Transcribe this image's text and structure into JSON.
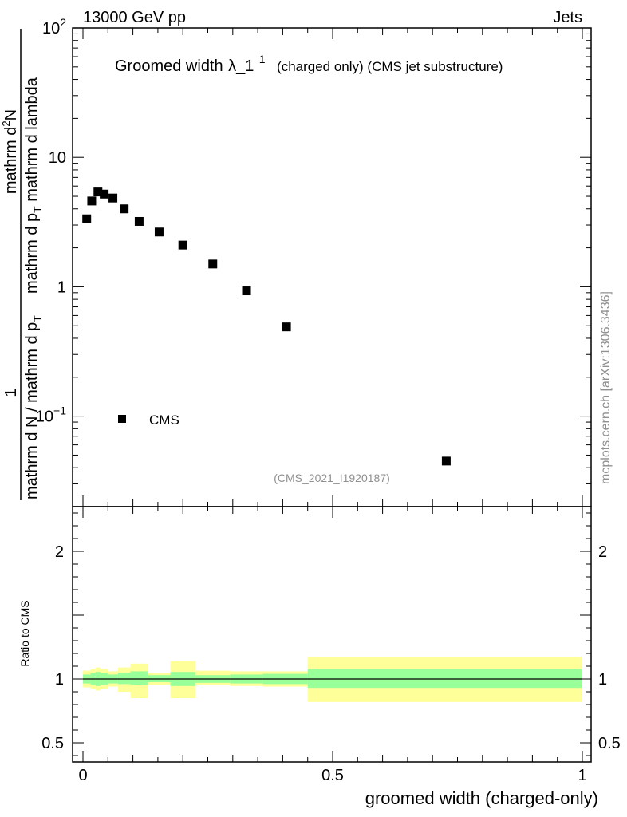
{
  "header": {
    "left": "13000 GeV pp",
    "right": "Jets"
  },
  "main_plot": {
    "title_main": "Groomed width",
    "title_symbol": "λ_1",
    "title_sup": "1",
    "title_note": "(charged only) (CMS jet substructure)",
    "ylabel_numerator_sym": "mathrm d",
    "ylabel_numerator_sup": "2",
    "ylabel_numerator_var": "N",
    "ylabel_denominator": "mathrm d p",
    "ylabel_denominator_sub": "T",
    "ylabel_denominator_tail": " mathrm d lambda",
    "ylabel_prefix_num": "1",
    "ylabel_prefix_den": "mathrm d N / mathrm d p",
    "ylabel_prefix_den_sub": "T",
    "legend_label": "CMS",
    "analysis_id": "(CMS_2021_I1920187)",
    "side_text": "mcplots.cern.ch [arXiv:1306.3436]"
  },
  "ratio_plot": {
    "ylabel": "Ratio to CMS"
  },
  "chart_data": {
    "type": "scatter",
    "title": "Groomed width λ_1^1 (charged only) (CMS jet substructure)",
    "xlabel": "groomed width (charged-only)",
    "xlim": [
      0,
      1
    ],
    "ylim": [
      0.02,
      100
    ],
    "yscale": "log",
    "x_ticks": [
      "0",
      "0.5",
      "1"
    ],
    "y_ticks": [
      "10^-1",
      "1",
      "10",
      "10^2"
    ],
    "series": [
      {
        "name": "CMS",
        "x": [
          0.0075,
          0.0175,
          0.03,
          0.0425,
          0.06,
          0.0825,
          0.1125,
          0.1525,
          0.2,
          0.26,
          0.3275,
          0.4075,
          0.7275
        ],
        "y": [
          3.35,
          4.6,
          5.4,
          5.2,
          4.85,
          4.0,
          3.2,
          2.65,
          2.1,
          1.5,
          0.93,
          0.49,
          0.045
        ]
      }
    ],
    "ratio": {
      "ylabel": "Ratio to CMS",
      "ylim": [
        0.35,
        2.35
      ],
      "y_ticks": [
        "0.5",
        "1",
        "2"
      ],
      "bins": [
        {
          "x0": 0.0,
          "x1": 0.015,
          "inner": [
            0.965,
            1.035
          ],
          "outer": [
            0.935,
            1.065
          ]
        },
        {
          "x0": 0.015,
          "x1": 0.025,
          "inner": [
            0.955,
            1.045
          ],
          "outer": [
            0.925,
            1.075
          ]
        },
        {
          "x0": 0.025,
          "x1": 0.035,
          "inner": [
            0.945,
            1.055
          ],
          "outer": [
            0.91,
            1.09
          ]
        },
        {
          "x0": 0.035,
          "x1": 0.05,
          "inner": [
            0.955,
            1.045
          ],
          "outer": [
            0.92,
            1.08
          ]
        },
        {
          "x0": 0.05,
          "x1": 0.07,
          "inner": [
            0.965,
            1.035
          ],
          "outer": [
            0.94,
            1.06
          ]
        },
        {
          "x0": 0.07,
          "x1": 0.095,
          "inner": [
            0.96,
            1.05
          ],
          "outer": [
            0.9,
            1.09
          ]
        },
        {
          "x0": 0.095,
          "x1": 0.13,
          "inner": [
            0.955,
            1.06
          ],
          "outer": [
            0.85,
            1.12
          ]
        },
        {
          "x0": 0.13,
          "x1": 0.175,
          "inner": [
            0.975,
            1.03
          ],
          "outer": [
            0.955,
            1.05
          ]
        },
        {
          "x0": 0.175,
          "x1": 0.225,
          "inner": [
            0.945,
            1.055
          ],
          "outer": [
            0.85,
            1.14
          ]
        },
        {
          "x0": 0.225,
          "x1": 0.295,
          "inner": [
            0.97,
            1.03
          ],
          "outer": [
            0.95,
            1.065
          ]
        },
        {
          "x0": 0.295,
          "x1": 0.36,
          "inner": [
            0.965,
            1.035
          ],
          "outer": [
            0.945,
            1.06
          ]
        },
        {
          "x0": 0.36,
          "x1": 0.45,
          "inner": [
            0.96,
            1.04
          ],
          "outer": [
            0.94,
            1.06
          ]
        },
        {
          "x0": 0.45,
          "x1": 1.0,
          "inner": [
            0.93,
            1.08
          ],
          "outer": [
            0.82,
            1.17
          ]
        }
      ]
    },
    "colors": {
      "inner_band": "#99ff99",
      "outer_band": "#ffff99",
      "marker": "#000000"
    }
  }
}
